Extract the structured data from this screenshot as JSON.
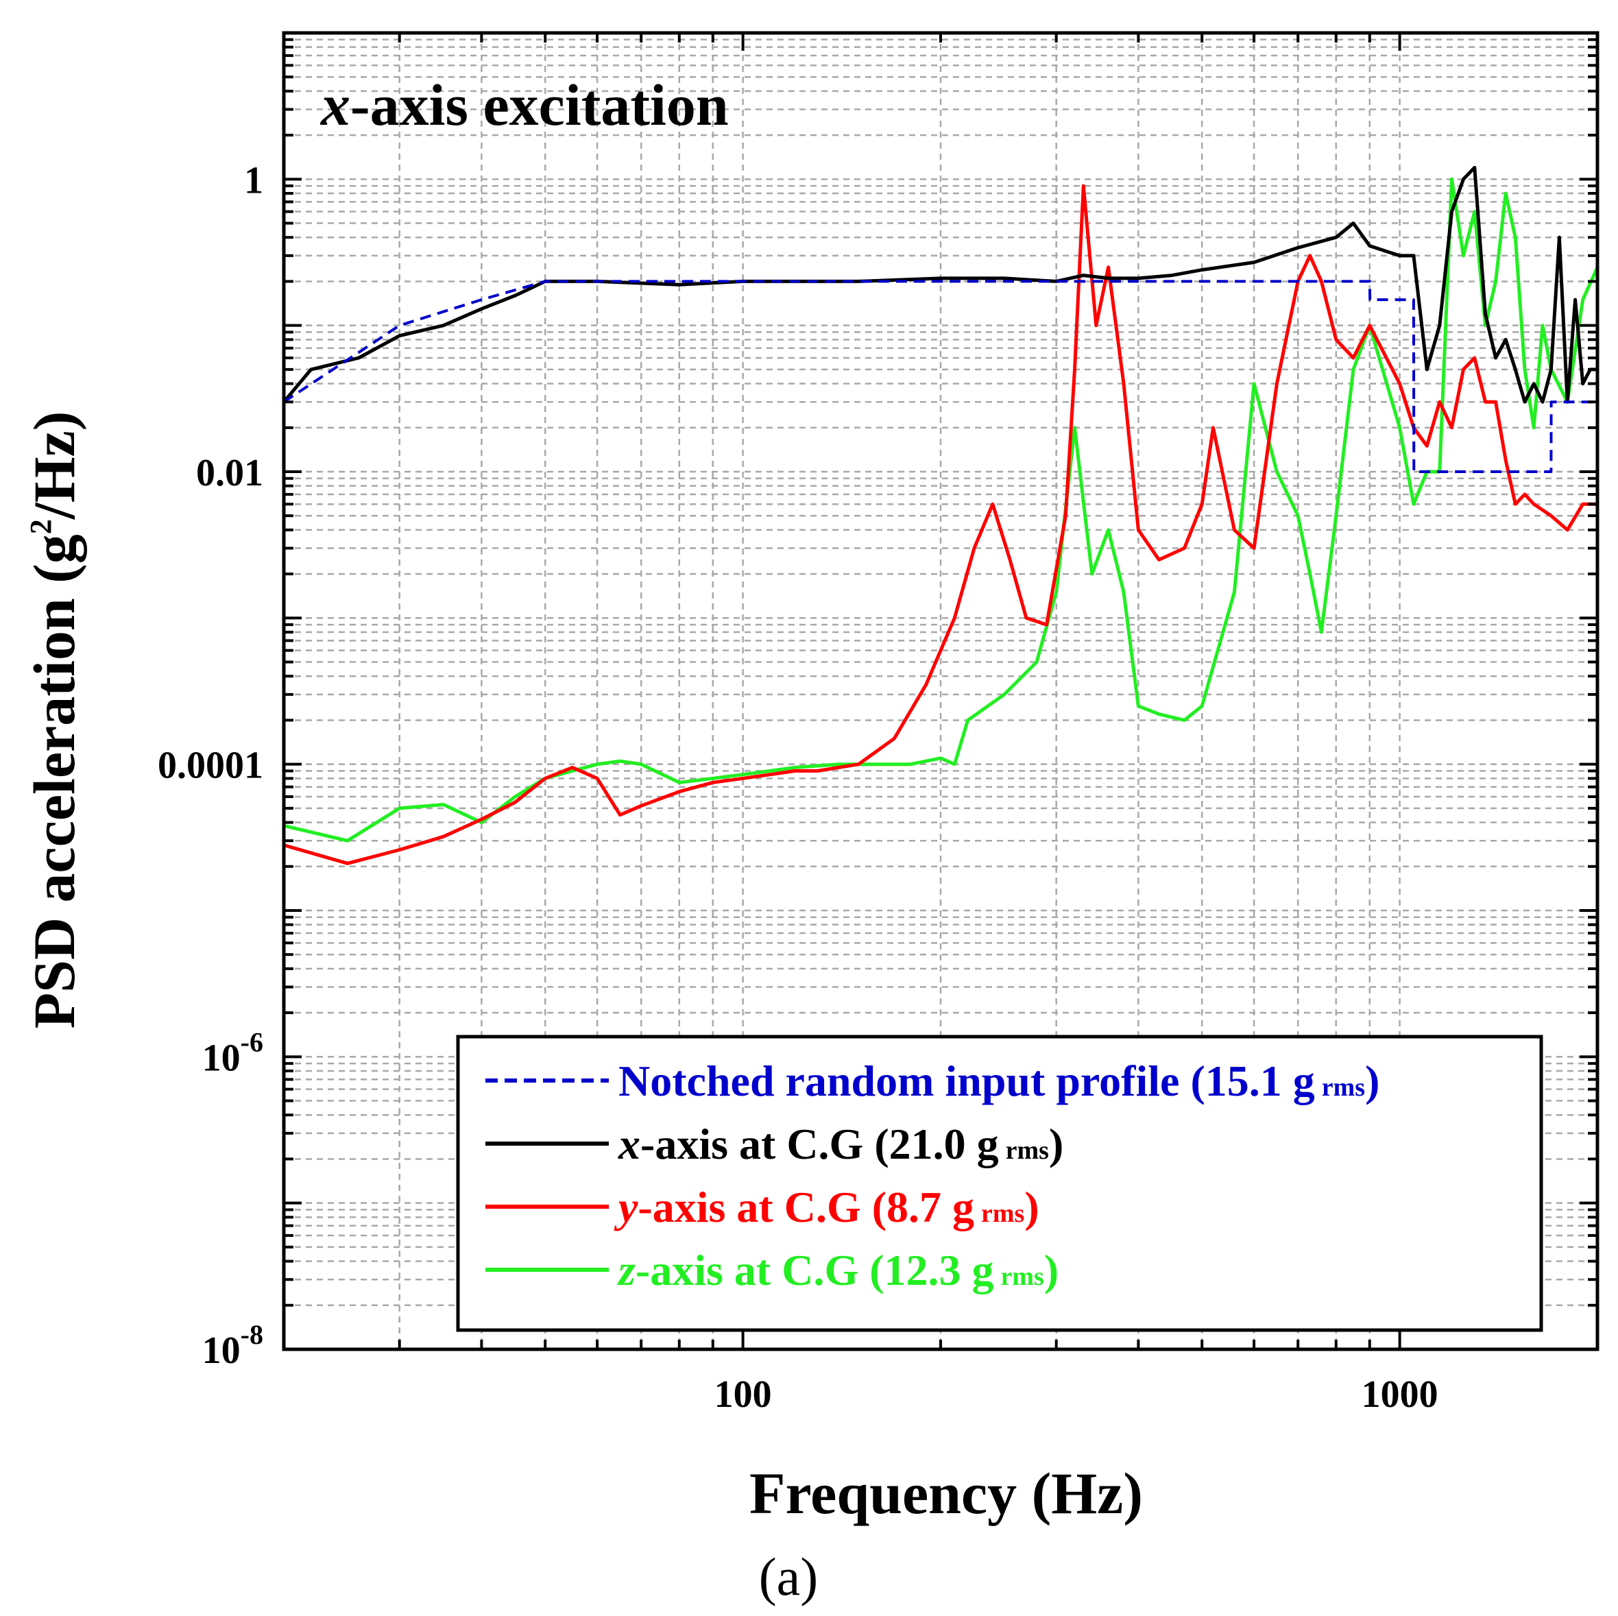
{
  "chart_data": {
    "type": "line",
    "title": "",
    "annotation": {
      "italic": "x",
      "rest": "-axis excitation"
    },
    "xlabel": "Frequency (Hz)",
    "ylabel": {
      "before": "PSD acceleration (g",
      "sup": "2",
      "after": "/Hz)"
    },
    "panel_label": "(a)",
    "x_scale": "log",
    "y_scale": "log",
    "xlim": [
      20,
      2000
    ],
    "ylim": [
      1e-08,
      10
    ],
    "x_ticks": [
      {
        "value": 100,
        "label": "100"
      },
      {
        "value": 1000,
        "label": "1000"
      }
    ],
    "y_ticks": [
      {
        "value": 1,
        "label": "1"
      },
      {
        "value": 0.01,
        "label": "0.01"
      },
      {
        "value": 0.0001,
        "label": "0.0001"
      },
      {
        "value": 1e-06,
        "base": "10",
        "exp": "-6"
      },
      {
        "value": 1e-08,
        "base": "10",
        "exp": "-8"
      }
    ],
    "grid": true,
    "legend_position": "bottom-right",
    "series": [
      {
        "key": "input",
        "style": "dashed",
        "color": "#0000cc",
        "legend": {
          "prefix": "",
          "text": "Notched random input profile (15.1 g",
          "sub": "rms",
          "suffix": ")"
        },
        "x": [
          20,
          30,
          40,
          50,
          400,
          600,
          900,
          901,
          1050,
          1051,
          1700,
          1701,
          2000
        ],
        "y": [
          0.03,
          0.1,
          0.15,
          0.2,
          0.2,
          0.2,
          0.2,
          0.15,
          0.15,
          0.01,
          0.01,
          0.03,
          0.03
        ]
      },
      {
        "key": "x",
        "style": "solid",
        "color": "#000000",
        "legend": {
          "prefix": "x",
          "text": "-axis at C.G (21.0 g",
          "sub": "rms",
          "suffix": ")"
        },
        "x": [
          20,
          22,
          26,
          30,
          35,
          40,
          45,
          50,
          60,
          80,
          100,
          150,
          200,
          250,
          300,
          330,
          360,
          400,
          450,
          500,
          600,
          700,
          800,
          850,
          900,
          1000,
          1050,
          1100,
          1150,
          1200,
          1250,
          1300,
          1350,
          1400,
          1450,
          1500,
          1550,
          1600,
          1650,
          1700,
          1750,
          1800,
          1850,
          1900,
          1950,
          2000
        ],
        "y": [
          0.03,
          0.05,
          0.06,
          0.085,
          0.1,
          0.13,
          0.16,
          0.2,
          0.2,
          0.19,
          0.2,
          0.2,
          0.21,
          0.21,
          0.2,
          0.22,
          0.21,
          0.21,
          0.22,
          0.24,
          0.27,
          0.34,
          0.4,
          0.5,
          0.35,
          0.3,
          0.3,
          0.05,
          0.1,
          0.6,
          1.0,
          1.2,
          0.12,
          0.06,
          0.08,
          0.05,
          0.03,
          0.04,
          0.03,
          0.05,
          0.4,
          0.03,
          0.15,
          0.04,
          0.05,
          0.05
        ]
      },
      {
        "key": "y",
        "style": "solid",
        "color": "#ff0000",
        "legend": {
          "prefix": "y",
          "text": "-axis at C.G (8.7 g",
          "sub": "rms",
          "suffix": ")"
        },
        "x": [
          20,
          25,
          30,
          35,
          40,
          45,
          50,
          55,
          60,
          65,
          70,
          80,
          90,
          100,
          110,
          120,
          130,
          150,
          170,
          190,
          210,
          225,
          240,
          255,
          270,
          290,
          310,
          320,
          330,
          345,
          360,
          380,
          400,
          430,
          470,
          500,
          520,
          560,
          600,
          650,
          700,
          730,
          760,
          800,
          850,
          900,
          1000,
          1050,
          1100,
          1150,
          1200,
          1250,
          1300,
          1350,
          1400,
          1450,
          1500,
          1550,
          1600,
          1700,
          1800,
          1900,
          2000
        ],
        "y": [
          2.8e-05,
          2.1e-05,
          2.6e-05,
          3.2e-05,
          4.2e-05,
          5.5e-05,
          8e-05,
          9.5e-05,
          8e-05,
          4.5e-05,
          5.2e-05,
          6.5e-05,
          7.5e-05,
          8e-05,
          8.5e-05,
          9e-05,
          9e-05,
          0.0001,
          0.00015,
          0.00035,
          0.001,
          0.003,
          0.006,
          0.0025,
          0.001,
          0.0009,
          0.005,
          0.05,
          0.9,
          0.1,
          0.25,
          0.04,
          0.004,
          0.0025,
          0.003,
          0.006,
          0.02,
          0.004,
          0.003,
          0.04,
          0.2,
          0.3,
          0.2,
          0.08,
          0.06,
          0.1,
          0.04,
          0.02,
          0.015,
          0.03,
          0.02,
          0.05,
          0.06,
          0.03,
          0.03,
          0.012,
          0.006,
          0.007,
          0.006,
          0.005,
          0.004,
          0.006,
          0.006
        ]
      },
      {
        "key": "z",
        "style": "solid",
        "color": "#22ee22",
        "legend": {
          "prefix": "z",
          "text": "-axis at C.G (12.3 g",
          "sub": "rms",
          "suffix": ")"
        },
        "x": [
          20,
          25,
          30,
          35,
          40,
          45,
          50,
          55,
          60,
          65,
          70,
          80,
          90,
          100,
          110,
          120,
          140,
          160,
          180,
          200,
          210,
          220,
          250,
          280,
          300,
          320,
          340,
          360,
          380,
          400,
          430,
          470,
          500,
          560,
          600,
          650,
          700,
          730,
          760,
          800,
          850,
          900,
          1000,
          1050,
          1100,
          1150,
          1200,
          1250,
          1300,
          1350,
          1400,
          1450,
          1500,
          1550,
          1600,
          1650,
          1700,
          1800,
          1900,
          2000
        ],
        "y": [
          3.8e-05,
          3e-05,
          5e-05,
          5.3e-05,
          4e-05,
          6e-05,
          8e-05,
          9e-05,
          0.0001,
          0.000105,
          0.0001,
          7.5e-05,
          8e-05,
          8.5e-05,
          9e-05,
          9.5e-05,
          0.0001,
          0.0001,
          0.0001,
          0.00011,
          0.0001,
          0.0002,
          0.0003,
          0.0005,
          0.0015,
          0.02,
          0.002,
          0.004,
          0.0015,
          0.00025,
          0.00022,
          0.0002,
          0.00025,
          0.0015,
          0.04,
          0.01,
          0.005,
          0.002,
          0.0008,
          0.005,
          0.05,
          0.1,
          0.02,
          0.006,
          0.01,
          0.01,
          1.0,
          0.3,
          0.6,
          0.1,
          0.2,
          0.8,
          0.4,
          0.05,
          0.02,
          0.1,
          0.05,
          0.03,
          0.15,
          0.25
        ]
      }
    ]
  }
}
